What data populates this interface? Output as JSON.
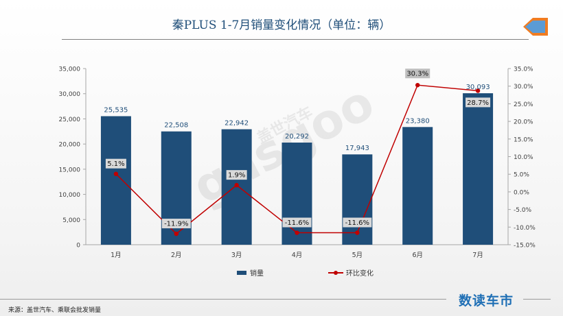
{
  "header": {
    "title": "秦PLUS 1-7月销量变化情况（单位：辆）"
  },
  "watermark": {
    "text": "gasgoo",
    "text_cn": "盖世汽车"
  },
  "colors": {
    "bar": "#1f4e79",
    "line": "#c00000",
    "label_bg": "#d9d9d9",
    "highlight_bg": "#bfbfbf"
  },
  "chart_data": {
    "type": "bar",
    "categories": [
      "1月",
      "2月",
      "3月",
      "4月",
      "5月",
      "6月",
      "7月"
    ],
    "series": [
      {
        "name": "销量",
        "type": "bar",
        "axis": "left",
        "values": [
          25535,
          22508,
          22942,
          20292,
          17943,
          23380,
          30093
        ],
        "labels": [
          "25,535",
          "22,508",
          "22,942",
          "20,292",
          "17,943",
          "23,380",
          "30,093"
        ]
      },
      {
        "name": "环比变化",
        "type": "line",
        "axis": "right",
        "values": [
          5.1,
          -11.9,
          1.9,
          -11.6,
          -11.6,
          30.3,
          28.7
        ],
        "labels": [
          "5.1%",
          "-11.9%",
          "1.9%",
          "-11.6%",
          "-11.6%",
          "30.3%",
          "28.7%"
        ]
      }
    ],
    "y_left": {
      "range": [
        0,
        35000
      ],
      "ticks": [
        "0",
        "5,000",
        "10,000",
        "15,000",
        "20,000",
        "25,000",
        "30,000",
        "35,000"
      ]
    },
    "y_right": {
      "range": [
        -15,
        35
      ],
      "ticks": [
        "-15.0%",
        "-10.0%",
        "-5.0%",
        "0.0%",
        "5.0%",
        "10.0%",
        "15.0%",
        "20.0%",
        "25.0%",
        "30.0%",
        "35.0%"
      ]
    },
    "legend": [
      "销量",
      "环比变化"
    ],
    "grid": false
  },
  "footer": {
    "source": "来源：盖世汽车、乘联会批发销量",
    "brand": "数读车市"
  }
}
